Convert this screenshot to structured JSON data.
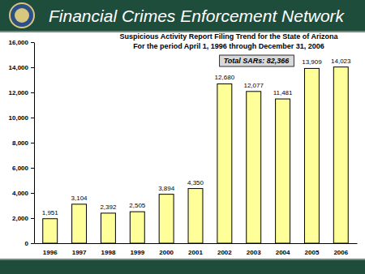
{
  "header": {
    "text": "Financial Crimes Enforcement Network"
  },
  "chart_data": {
    "type": "bar",
    "title": "Suspicious Activity Report Filing Trend for the State of Arizona",
    "subtitle": "For the period April 1, 1996 through December 31, 2006",
    "annotations": [
      {
        "text": "Total SARs: 82,366"
      }
    ],
    "categories": [
      "1996",
      "1997",
      "1998",
      "1999",
      "2000",
      "2001",
      "2002",
      "2003",
      "2004",
      "2005",
      "2006"
    ],
    "values": [
      1951,
      3104,
      2392,
      2505,
      3894,
      4350,
      12680,
      12077,
      11481,
      13909,
      14023
    ],
    "value_labels": [
      "1,951",
      "3,104",
      "2,392",
      "2,505",
      "3,894",
      "4,350",
      "12,680",
      "12,077",
      "11,481",
      "13,909",
      "14,023"
    ],
    "data_labels": true,
    "color": "#ffff99",
    "grid": false,
    "ylim": [
      0,
      16000
    ],
    "yticks": [
      0,
      {
        "value": 2000,
        "label": "2,000"
      },
      {
        "value": 4000,
        "label": "4,000"
      },
      {
        "value": 6000,
        "label": "6,000"
      },
      {
        "value": 8000,
        "label": "8,000"
      },
      {
        "value": 10000,
        "label": "10,000"
      },
      {
        "value": 12000,
        "label": "12,000"
      },
      {
        "value": 14000,
        "label": "14,000"
      },
      {
        "value": 16000,
        "label": "16,000"
      }
    ]
  }
}
